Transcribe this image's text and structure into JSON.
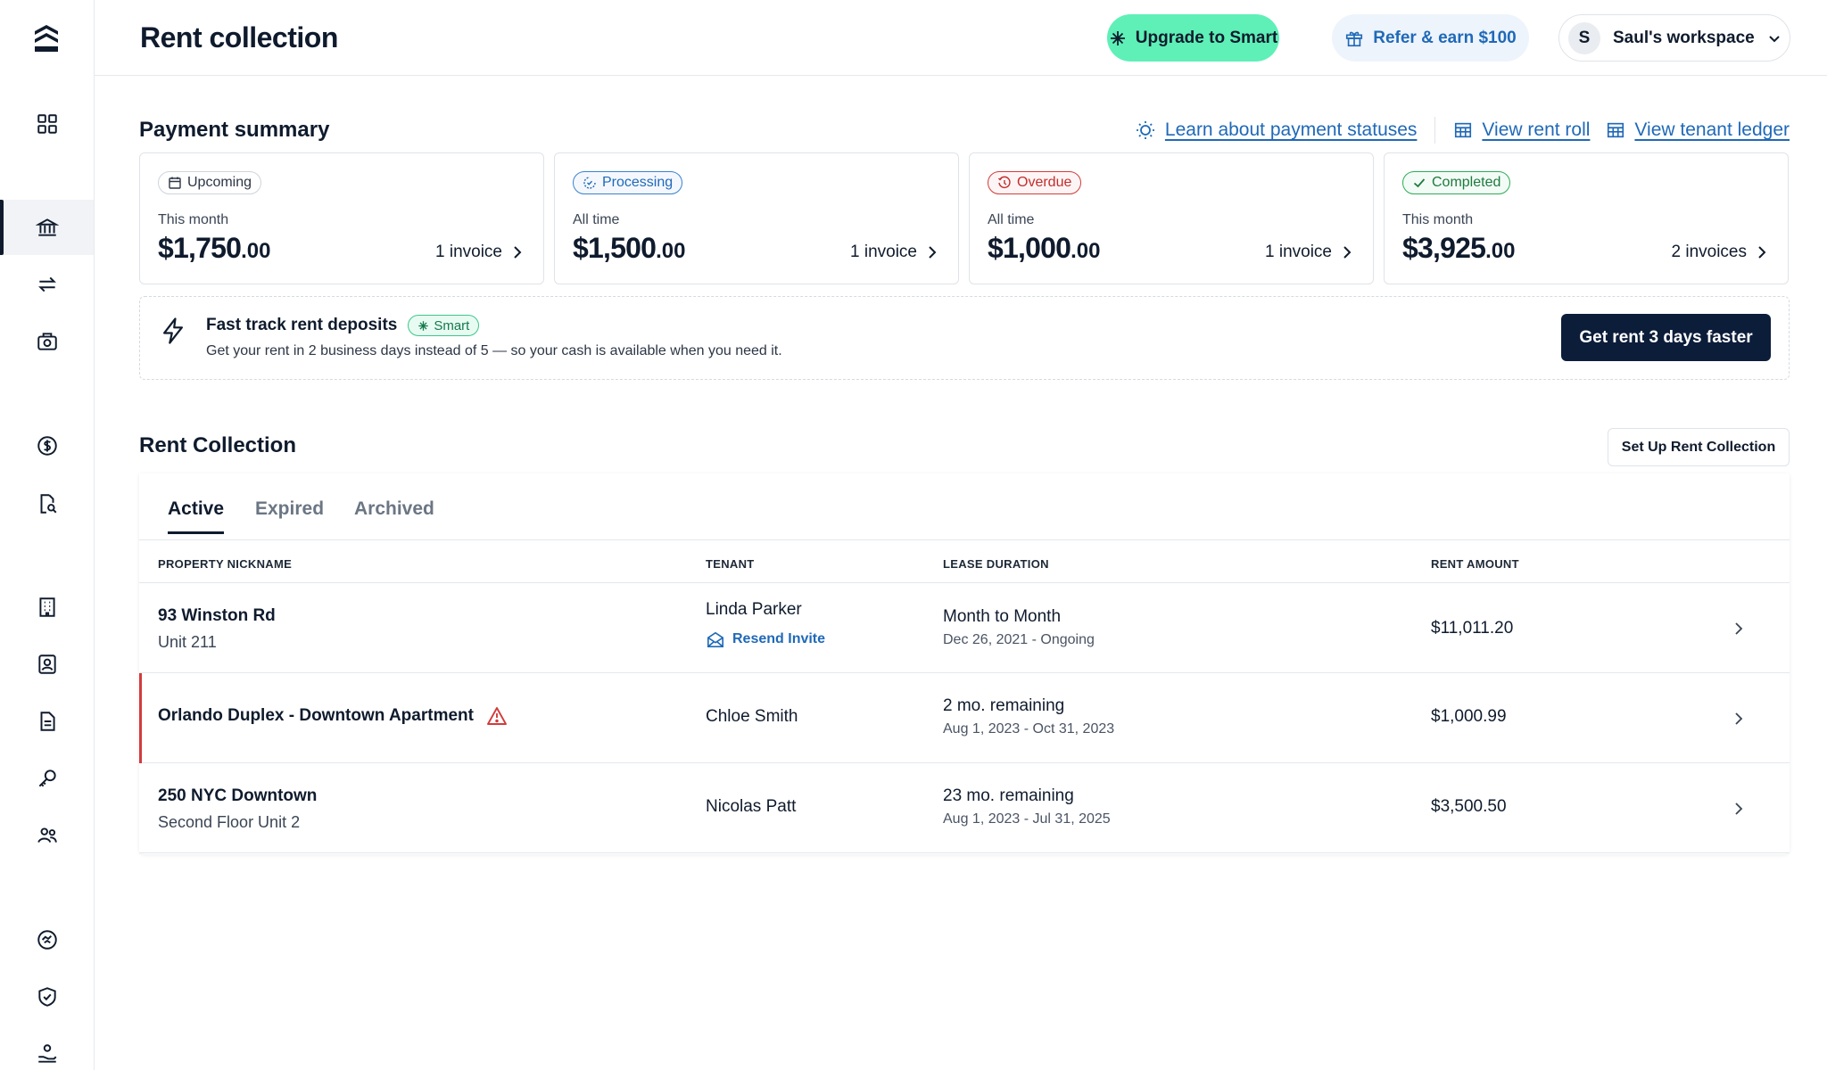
{
  "header": {
    "title": "Rent collection",
    "upgrade_label": "Upgrade to Smart",
    "refer_label": "Refer & earn $100",
    "workspace_initial": "S",
    "workspace_label": "Saul's workspace"
  },
  "summary": {
    "title": "Payment summary",
    "links": {
      "statuses": "Learn about payment statuses",
      "rent_roll": "View rent roll",
      "tenant_ledger": "View tenant ledger"
    },
    "cards": [
      {
        "status": "Upcoming",
        "period": "This month",
        "amount": "$1,750",
        "cents": ".00",
        "count": "1 invoice"
      },
      {
        "status": "Processing",
        "period": "All time",
        "amount": "$1,500",
        "cents": ".00",
        "count": "1 invoice"
      },
      {
        "status": "Overdue",
        "period": "All time",
        "amount": "$1,000",
        "cents": ".00",
        "count": "1 invoice"
      },
      {
        "status": "Completed",
        "period": "This month",
        "amount": "$3,925",
        "cents": ".00",
        "count": "2 invoices"
      }
    ]
  },
  "promo": {
    "title": "Fast track rent deposits",
    "pill": "Smart",
    "description": "Get your rent in 2 business days instead of 5 — so your cash is available when you need it.",
    "button": "Get rent 3 days faster"
  },
  "rent_collection": {
    "title": "Rent Collection",
    "setup_button": "Set Up Rent Collection",
    "tabs": [
      "Active",
      "Expired",
      "Archived"
    ],
    "columns": [
      "PROPERTY NICKNAME",
      "TENANT",
      "LEASE DURATION",
      "RENT AMOUNT"
    ],
    "rows": [
      {
        "property": "93 Winston Rd",
        "unit": "Unit 211",
        "tenant": "Linda Parker",
        "action": "Resend Invite",
        "duration": "Month to Month",
        "dates": "Dec 26, 2021 - Ongoing",
        "amount": "$11,011.20"
      },
      {
        "property": "Orlando Duplex - Downtown Apartment",
        "unit": "",
        "tenant": "Chloe Smith",
        "action": "",
        "duration": "2 mo. remaining",
        "dates": "Aug 1, 2023 - Oct 31, 2023",
        "amount": "$1,000.99"
      },
      {
        "property": "250 NYC Downtown",
        "unit": "Second Floor Unit 2",
        "tenant": "Nicolas Patt",
        "action": "",
        "duration": "23 mo. remaining",
        "dates": "Aug 1, 2023 - Jul 31, 2025",
        "amount": "$3,500.50"
      }
    ]
  },
  "icons": {
    "sidebar": [
      "logo-icon",
      "dashboard-icon",
      "bank-icon",
      "transfer-icon",
      "camera-icon",
      "dollar-circle-icon",
      "document-search-icon",
      "building-icon",
      "contact-card-icon",
      "document-icon",
      "key-icon",
      "people-icon",
      "handshake-icon",
      "shield-check-icon",
      "hand-coin-icon"
    ]
  },
  "colors": {
    "brand_dark": "#0f1b2d",
    "upgrade_green": "#5ef0b7",
    "link_blue": "#1f69b8",
    "overdue_red": "#d33b3b",
    "completed_green": "#2bae57"
  }
}
